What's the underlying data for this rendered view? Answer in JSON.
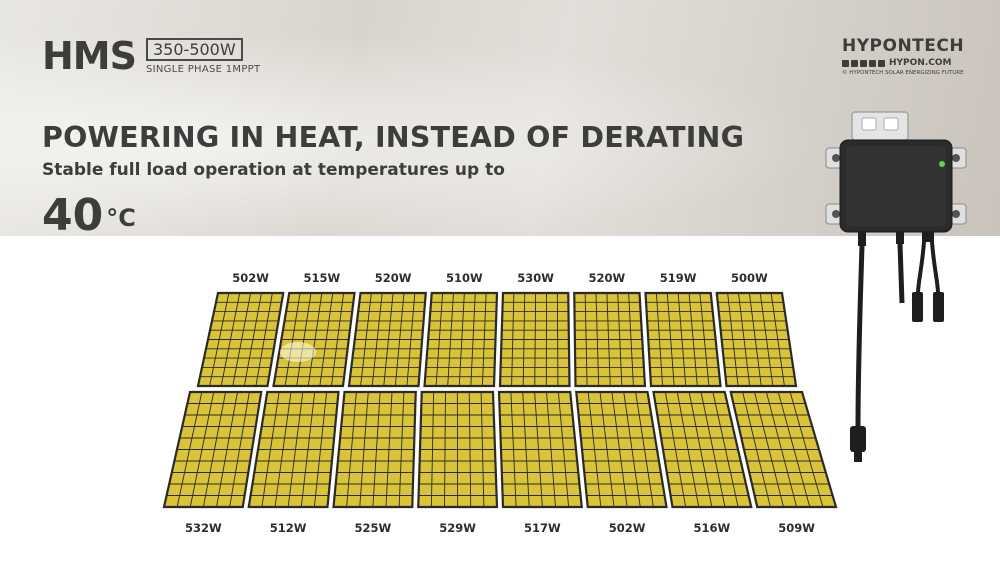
{
  "product": {
    "model": "HMS",
    "power_range": "350-500W",
    "phase_info": "SINGLE PHASE 1MPPT"
  },
  "company": {
    "name": "HYPONTECH",
    "website": "HYPON.COM",
    "slogan": "© HYPONTECH SOLAR ENERGIZING FUTURE",
    "social_icons": [
      "instagram-icon",
      "youtube-icon",
      "facebook-icon",
      "twitter-icon",
      "linkedin-icon"
    ]
  },
  "headline": "POWERING IN HEAT, INSTEAD OF DERATING",
  "subheadline": "Stable full load operation at temperatures up to",
  "temperature": {
    "value": "40",
    "unit": "°C"
  },
  "panels": {
    "top_row": [
      "502W",
      "515W",
      "520W",
      "510W",
      "530W",
      "520W",
      "519W",
      "500W"
    ],
    "bottom_row": [
      "532W",
      "512W",
      "525W",
      "529W",
      "517W",
      "502W",
      "516W",
      "509W"
    ]
  },
  "colors": {
    "text": "#3d3d3b",
    "panel_fill": "#d9c338",
    "panel_frame": "#2a2a2a",
    "inverter_body": "#2b2b2b",
    "status_led": "#5ad64a"
  }
}
